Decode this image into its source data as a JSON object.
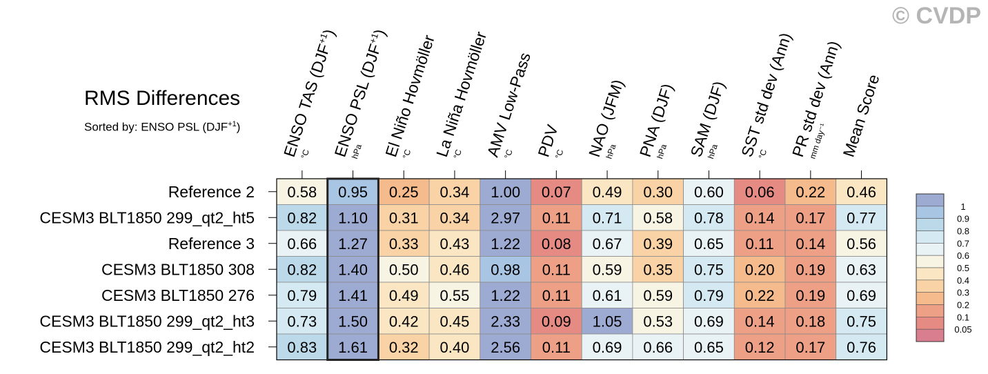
{
  "watermark": "© CVDP",
  "chart_data": {
    "type": "heatmap",
    "title": "RMS Differences",
    "subtitle_prefix": "Sorted by: ENSO PSL (DJF",
    "subtitle_sup": "+1",
    "subtitle_suffix": ")",
    "highlighted_column": 1,
    "columns": [
      {
        "label": "ENSO TAS (DJF",
        "sup": "+1",
        "tail": ")",
        "unit": "°C"
      },
      {
        "label": "ENSO PSL (DJF",
        "sup": "+1",
        "tail": ")",
        "unit": "hPa"
      },
      {
        "label": "El Niño Hovmöller",
        "sup": "",
        "tail": "",
        "unit": "°C"
      },
      {
        "label": "La Niña Hovmöller",
        "sup": "",
        "tail": "",
        "unit": "°C"
      },
      {
        "label": "AMV Low-Pass",
        "sup": "",
        "tail": "",
        "unit": "°C"
      },
      {
        "label": "PDV",
        "sup": "",
        "tail": "",
        "unit": "°C"
      },
      {
        "label": "NAO (JFM)",
        "sup": "",
        "tail": "",
        "unit": "hPa"
      },
      {
        "label": "PNA (DJF)",
        "sup": "",
        "tail": "",
        "unit": "hPa"
      },
      {
        "label": "SAM (DJF)",
        "sup": "",
        "tail": "",
        "unit": "hPa"
      },
      {
        "label": "SST std dev (Ann)",
        "sup": "",
        "tail": "",
        "unit": "°C"
      },
      {
        "label": "PR std dev (Ann)",
        "sup": "",
        "tail": "",
        "unit": "mm day⁻¹"
      },
      {
        "label": "Mean Score",
        "sup": "",
        "tail": "",
        "unit": ""
      }
    ],
    "rows": [
      {
        "name": "Reference 2",
        "values": [
          0.58,
          0.95,
          0.25,
          0.34,
          1.0,
          0.07,
          0.49,
          0.3,
          0.6,
          0.06,
          0.22,
          0.46
        ]
      },
      {
        "name": "CESM3 BLT1850 299_qt2_ht5",
        "values": [
          0.82,
          1.1,
          0.31,
          0.34,
          2.97,
          0.11,
          0.71,
          0.58,
          0.78,
          0.14,
          0.17,
          0.77
        ]
      },
      {
        "name": "Reference 3",
        "values": [
          0.66,
          1.27,
          0.33,
          0.43,
          1.22,
          0.08,
          0.67,
          0.39,
          0.65,
          0.11,
          0.14,
          0.56
        ]
      },
      {
        "name": "CESM3 BLT1850 308",
        "values": [
          0.82,
          1.4,
          0.5,
          0.46,
          0.98,
          0.11,
          0.59,
          0.35,
          0.75,
          0.2,
          0.19,
          0.63
        ]
      },
      {
        "name": "CESM3 BLT1850 276",
        "values": [
          0.79,
          1.41,
          0.49,
          0.55,
          1.22,
          0.11,
          0.61,
          0.59,
          0.79,
          0.22,
          0.19,
          0.69
        ]
      },
      {
        "name": "CESM3 BLT1850 299_qt2_ht3",
        "values": [
          0.73,
          1.5,
          0.42,
          0.45,
          2.33,
          0.09,
          1.05,
          0.53,
          0.69,
          0.14,
          0.18,
          0.75
        ]
      },
      {
        "name": "CESM3 BLT1850 299_qt2_ht2",
        "values": [
          0.83,
          1.61,
          0.32,
          0.4,
          2.56,
          0.11,
          0.69,
          0.66,
          0.65,
          0.12,
          0.17,
          0.76
        ]
      }
    ],
    "colorbar": {
      "labels": [
        "1",
        "0.9",
        "0.8",
        "0.7",
        "0.6",
        "0.5",
        "0.4",
        "0.3",
        "0.2",
        "0.1",
        "0.05"
      ],
      "colors": [
        "#9dabd3",
        "#a8c5e3",
        "#bcd9ea",
        "#d4e9f2",
        "#e9f3f6",
        "#f7f4e4",
        "#fbe6c3",
        "#f9d3a5",
        "#f5bb8c",
        "#eda085",
        "#e58b84",
        "#d87e8e"
      ]
    }
  }
}
